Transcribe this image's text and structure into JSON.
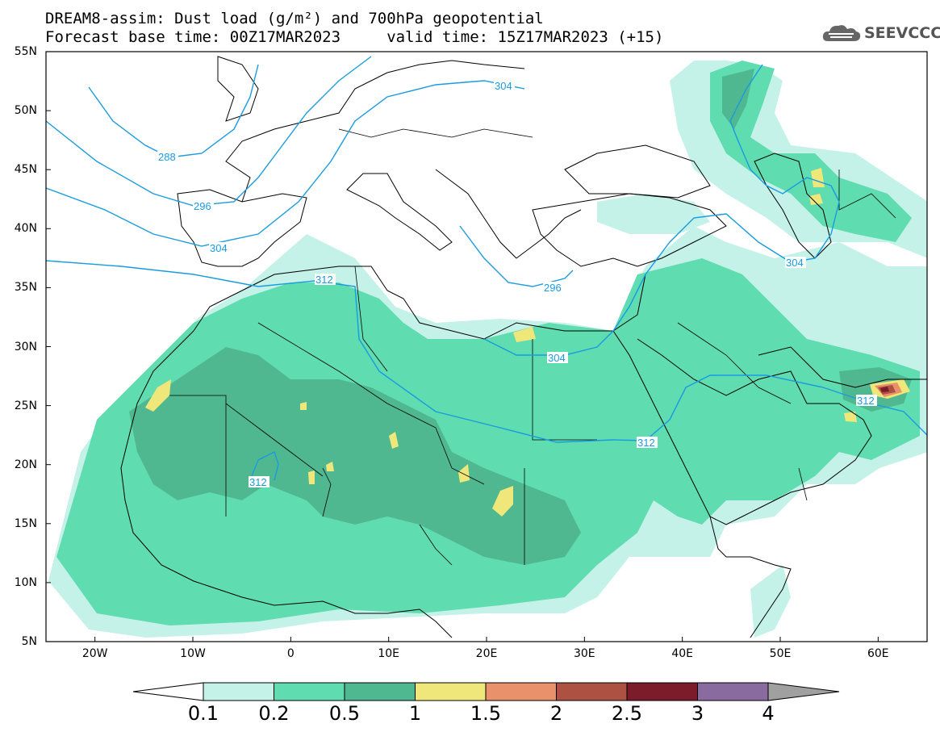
{
  "header": {
    "title_line1": "DREAM8-assim: Dust load (g/m²) and 700hPa geopotential",
    "title_line2": "Forecast base time: 00Z17MAR2023     valid time: 15Z17MAR2023 (+15)"
  },
  "logo": {
    "text": "SEEVCCC",
    "icon": "cloud-icon",
    "color": "#555555"
  },
  "axes": {
    "lat_labels": [
      "55N",
      "50N",
      "45N",
      "40N",
      "35N",
      "30N",
      "25N",
      "20N",
      "15N",
      "10N",
      "5N"
    ],
    "lat_values": [
      55,
      50,
      45,
      40,
      35,
      30,
      25,
      20,
      15,
      10,
      5
    ],
    "lon_labels": [
      "20W",
      "10W",
      "0",
      "10E",
      "20E",
      "30E",
      "40E",
      "50E",
      "60E"
    ],
    "lon_values": [
      -20,
      -10,
      0,
      10,
      20,
      30,
      40,
      50,
      60
    ],
    "lat_range": [
      5,
      55
    ],
    "lon_range": [
      -25,
      65
    ]
  },
  "contours": [
    {
      "label": "288",
      "value": 288
    },
    {
      "label": "296",
      "value": 296
    },
    {
      "label": "304",
      "value": 304
    },
    {
      "label": "312",
      "value": 312
    },
    {
      "label": "304",
      "value": 304
    },
    {
      "label": "296",
      "value": 296
    },
    {
      "label": "304",
      "value": 304
    },
    {
      "label": "304",
      "value": 304
    },
    {
      "label": "312",
      "value": 312
    },
    {
      "label": "312",
      "value": 312
    },
    {
      "label": "312",
      "value": 312
    }
  ],
  "colorbar": {
    "levels": [
      "0.1",
      "0.2",
      "0.5",
      "1",
      "1.5",
      "2",
      "2.5",
      "3",
      "4"
    ],
    "colors": [
      "#c4f1e8",
      "#5fdcb0",
      "#50b890",
      "#f0e77a",
      "#e8916a",
      "#ad5143",
      "#7c1c2b",
      "#8a6ba0"
    ],
    "under_color": "#ffffff",
    "over_color": "#a0a0a0"
  },
  "styles": {
    "contour_color": "#1a9be0",
    "land_outline": "#000000",
    "frame": "#000000"
  }
}
